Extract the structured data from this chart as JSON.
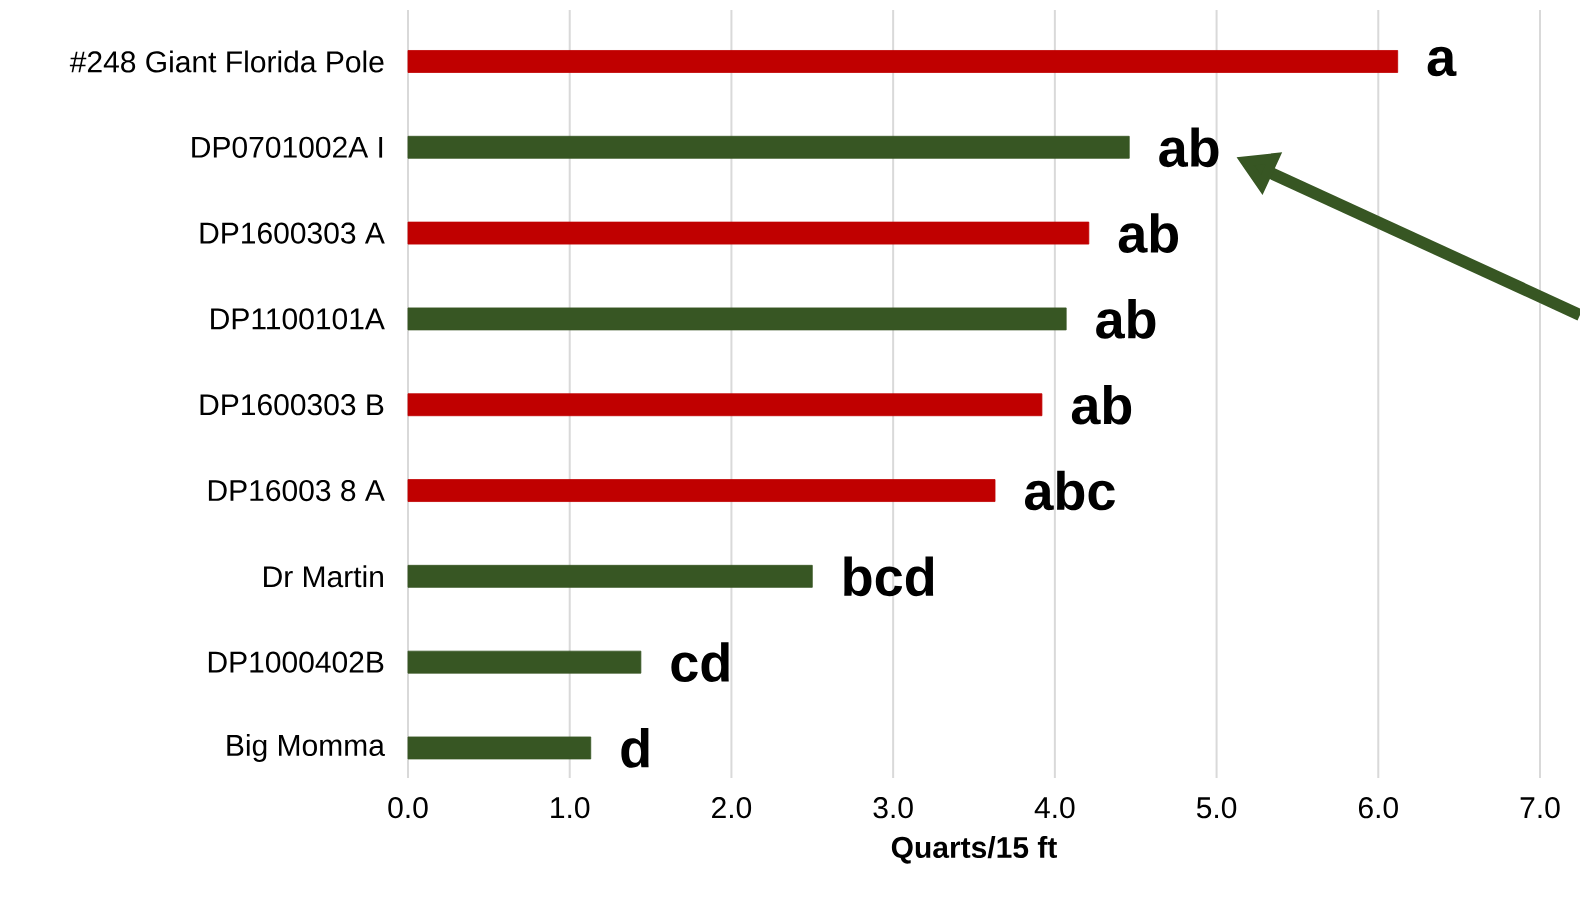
{
  "chart_data": {
    "type": "bar",
    "orientation": "horizontal",
    "xlabel": "Quarts/15 ft",
    "categories": [
      "#248 Giant Florida Pole",
      "DP0701002A I",
      "DP1600303 A",
      "DP1100101A",
      "DP1600303 B",
      "DP16003  8 A",
      "Dr Martin",
      "DP1000402B",
      "Big Momma"
    ],
    "values": [
      6.12,
      4.46,
      4.21,
      4.07,
      3.92,
      3.63,
      2.5,
      1.44,
      1.13
    ],
    "colors": [
      "#c00000",
      "#375623",
      "#c00000",
      "#375623",
      "#c00000",
      "#c00000",
      "#375623",
      "#375623",
      "#375623"
    ],
    "xlim": [
      0,
      7
    ],
    "xticks": [
      {
        "value": 0,
        "label": "0.0"
      },
      {
        "value": 1,
        "label": "1.0"
      },
      {
        "value": 2,
        "label": "2.0"
      },
      {
        "value": 3,
        "label": "3.0"
      },
      {
        "value": 4,
        "label": "4.0"
      },
      {
        "value": 5,
        "label": "5.0"
      },
      {
        "value": 6,
        "label": "6.0"
      },
      {
        "value": 7,
        "label": "7.0"
      }
    ],
    "grid": "x",
    "annotations": [
      {
        "text": "a",
        "x": 6.12,
        "y": "#248 Giant Florida Pole"
      },
      {
        "text": "ab",
        "x": 4.46,
        "y": "DP0701002A I"
      },
      {
        "text": "ab",
        "x": 4.21,
        "y": "DP1600303 A"
      },
      {
        "text": "ab",
        "x": 4.07,
        "y": "DP1100101A"
      },
      {
        "text": "ab",
        "x": 3.92,
        "y": "DP1600303 B"
      },
      {
        "text": "abc",
        "x": 3.63,
        "y": "DP16003  8 A"
      },
      {
        "text": "bcd",
        "x": 2.5,
        "y": "Dr Martin"
      },
      {
        "text": "cd",
        "x": 1.44,
        "y": "DP1000402B"
      },
      {
        "text": "d",
        "x": 1.13,
        "y": "Big Momma"
      }
    ]
  }
}
